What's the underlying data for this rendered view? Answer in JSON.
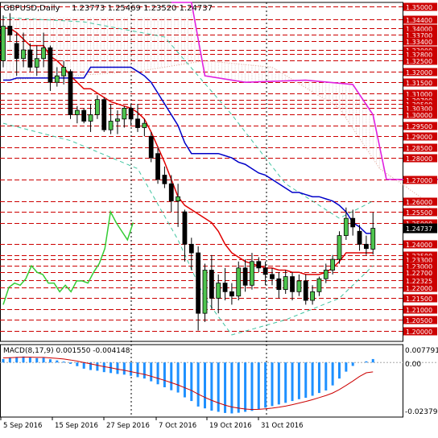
{
  "header": {
    "symbol": "GBPUSD,Daily",
    "ohlc": "1.23773 1.25469 1.23520 1.24737"
  },
  "macd": {
    "label": "MACD(8,17,9) 0.001550 -0.004148",
    "scale_top": "0.007791",
    "scale_zero": "0.00",
    "scale_bottom": "-0.02379"
  },
  "colors": {
    "background": "#ffffff",
    "level_line": "#cc0000",
    "current_price_bg": "#000000",
    "candle_bull": "#4ec44e",
    "candle_bear": "#000000",
    "tenkan": "#e00000",
    "kijun": "#0000c8",
    "senkou_b": "#e020e0",
    "chikou": "#33cc33",
    "bollinger": "#40c4a0",
    "macd_hist": "#1e90ff",
    "macd_signal": "#cc0000"
  },
  "chart_data": {
    "type": "candlestick",
    "symbol": "GBPUSD",
    "timeframe": "Daily",
    "ylim": [
      1.195,
      1.352
    ],
    "current_price": 1.24737,
    "levels": [
      1.35,
      1.344,
      1.34,
      1.337,
      1.334,
      1.33,
      1.328,
      1.325,
      1.32,
      1.315,
      1.31,
      1.307,
      1.305,
      1.303,
      1.3,
      1.295,
      1.29,
      1.285,
      1.28,
      1.27,
      1.26,
      1.255,
      1.25,
      1.24,
      1.235,
      1.233,
      1.23,
      1.227,
      1.2232,
      1.22,
      1.215,
      1.21,
      1.205,
      1.2
    ],
    "level_labels": [
      "1.35000",
      "1.34400",
      "1.34000",
      "1.33700",
      "1.33400",
      "1.33000",
      "1.32800",
      "1.32500",
      "1.32000",
      "1.31500",
      "1.31000",
      "1.30700",
      "1.30500",
      "1.30300",
      "1.30000",
      "1.29500",
      "1.29000",
      "1.28500",
      "1.28000",
      "1.27000",
      "1.26000",
      "1.25500",
      "1.25000",
      "1.24000",
      "1.23500",
      "1.23300",
      "1.23000",
      "1.22700",
      "1.22325",
      "1.22000",
      "1.21500",
      "1.21000",
      "1.20500",
      "1.20000"
    ],
    "x_labels": [
      "5 Sep 2016",
      "15 Sep 2016",
      "27 Sep 2016",
      "7 Oct 2016",
      "19 Oct 2016",
      "31 Oct 2016"
    ],
    "candles": [
      {
        "o": 1.325,
        "h": 1.346,
        "l": 1.322,
        "c": 1.341
      },
      {
        "o": 1.341,
        "h": 1.347,
        "l": 1.334,
        "c": 1.337
      },
      {
        "o": 1.333,
        "h": 1.338,
        "l": 1.318,
        "c": 1.326
      },
      {
        "o": 1.326,
        "h": 1.338,
        "l": 1.322,
        "c": 1.33
      },
      {
        "o": 1.33,
        "h": 1.333,
        "l": 1.32,
        "c": 1.322
      },
      {
        "o": 1.322,
        "h": 1.332,
        "l": 1.318,
        "c": 1.326
      },
      {
        "o": 1.326,
        "h": 1.338,
        "l": 1.322,
        "c": 1.331
      },
      {
        "o": 1.331,
        "h": 1.332,
        "l": 1.311,
        "c": 1.315
      },
      {
        "o": 1.315,
        "h": 1.322,
        "l": 1.313,
        "c": 1.318
      },
      {
        "o": 1.318,
        "h": 1.325,
        "l": 1.314,
        "c": 1.322
      },
      {
        "o": 1.32,
        "h": 1.321,
        "l": 1.298,
        "c": 1.3
      },
      {
        "o": 1.3,
        "h": 1.304,
        "l": 1.296,
        "c": 1.302
      },
      {
        "o": 1.302,
        "h": 1.303,
        "l": 1.296,
        "c": 1.297
      },
      {
        "o": 1.297,
        "h": 1.305,
        "l": 1.292,
        "c": 1.3
      },
      {
        "o": 1.3,
        "h": 1.309,
        "l": 1.298,
        "c": 1.307
      },
      {
        "o": 1.307,
        "h": 1.308,
        "l": 1.292,
        "c": 1.293
      },
      {
        "o": 1.293,
        "h": 1.305,
        "l": 1.291,
        "c": 1.297
      },
      {
        "o": 1.297,
        "h": 1.302,
        "l": 1.291,
        "c": 1.298
      },
      {
        "o": 1.298,
        "h": 1.304,
        "l": 1.294,
        "c": 1.303
      },
      {
        "o": 1.303,
        "h": 1.305,
        "l": 1.295,
        "c": 1.298
      },
      {
        "o": 1.298,
        "h": 1.305,
        "l": 1.292,
        "c": 1.294
      },
      {
        "o": 1.294,
        "h": 1.298,
        "l": 1.29,
        "c": 1.296
      },
      {
        "o": 1.29,
        "h": 1.292,
        "l": 1.278,
        "c": 1.28
      },
      {
        "o": 1.282,
        "h": 1.285,
        "l": 1.268,
        "c": 1.27
      },
      {
        "o": 1.272,
        "h": 1.276,
        "l": 1.266,
        "c": 1.268
      },
      {
        "o": 1.268,
        "h": 1.272,
        "l": 1.255,
        "c": 1.26
      },
      {
        "o": 1.26,
        "h": 1.268,
        "l": 1.248,
        "c": 1.262
      },
      {
        "o": 1.255,
        "h": 1.256,
        "l": 1.232,
        "c": 1.24
      },
      {
        "o": 1.24,
        "h": 1.243,
        "l": 1.228,
        "c": 1.236
      },
      {
        "o": 1.236,
        "h": 1.239,
        "l": 1.2,
        "c": 1.208
      },
      {
        "o": 1.208,
        "h": 1.231,
        "l": 1.204,
        "c": 1.228
      },
      {
        "o": 1.228,
        "h": 1.235,
        "l": 1.21,
        "c": 1.215
      },
      {
        "o": 1.215,
        "h": 1.226,
        "l": 1.208,
        "c": 1.222
      },
      {
        "o": 1.222,
        "h": 1.229,
        "l": 1.214,
        "c": 1.218
      },
      {
        "o": 1.218,
        "h": 1.222,
        "l": 1.212,
        "c": 1.216
      },
      {
        "o": 1.216,
        "h": 1.232,
        "l": 1.214,
        "c": 1.229
      },
      {
        "o": 1.229,
        "h": 1.233,
        "l": 1.218,
        "c": 1.221
      },
      {
        "o": 1.221,
        "h": 1.236,
        "l": 1.219,
        "c": 1.232
      },
      {
        "o": 1.232,
        "h": 1.234,
        "l": 1.227,
        "c": 1.229
      },
      {
        "o": 1.229,
        "h": 1.232,
        "l": 1.221,
        "c": 1.226
      },
      {
        "o": 1.226,
        "h": 1.229,
        "l": 1.221,
        "c": 1.224
      },
      {
        "o": 1.224,
        "h": 1.227,
        "l": 1.215,
        "c": 1.219
      },
      {
        "o": 1.219,
        "h": 1.228,
        "l": 1.217,
        "c": 1.225
      },
      {
        "o": 1.225,
        "h": 1.227,
        "l": 1.214,
        "c": 1.218
      },
      {
        "o": 1.218,
        "h": 1.226,
        "l": 1.216,
        "c": 1.223
      },
      {
        "o": 1.223,
        "h": 1.226,
        "l": 1.212,
        "c": 1.214
      },
      {
        "o": 1.214,
        "h": 1.221,
        "l": 1.212,
        "c": 1.218
      },
      {
        "o": 1.218,
        "h": 1.225,
        "l": 1.216,
        "c": 1.224
      },
      {
        "o": 1.224,
        "h": 1.231,
        "l": 1.222,
        "c": 1.228
      },
      {
        "o": 1.228,
        "h": 1.235,
        "l": 1.226,
        "c": 1.233
      },
      {
        "o": 1.233,
        "h": 1.246,
        "l": 1.231,
        "c": 1.244
      },
      {
        "o": 1.244,
        "h": 1.257,
        "l": 1.242,
        "c": 1.252
      },
      {
        "o": 1.252,
        "h": 1.256,
        "l": 1.244,
        "c": 1.248
      },
      {
        "o": 1.246,
        "h": 1.249,
        "l": 1.237,
        "c": 1.24
      },
      {
        "o": 1.24,
        "h": 1.244,
        "l": 1.235,
        "c": 1.238
      },
      {
        "o": 1.23773,
        "h": 1.25469,
        "l": 1.2352,
        "c": 1.24737
      }
    ],
    "tenkan": [
      1.34,
      1.34,
      1.338,
      1.335,
      1.332,
      1.332,
      1.332,
      1.327,
      1.325,
      1.322,
      1.318,
      1.315,
      1.312,
      1.312,
      1.31,
      1.308,
      1.306,
      1.305,
      1.304,
      1.303,
      1.301,
      1.298,
      1.292,
      1.285,
      1.278,
      1.27,
      1.262,
      1.258,
      1.256,
      1.254,
      1.252,
      1.25,
      1.246,
      1.24,
      1.236,
      1.234,
      1.232,
      1.231,
      1.23,
      1.229,
      1.229,
      1.228,
      1.228,
      1.227,
      1.227,
      1.226,
      1.226,
      1.226,
      1.227,
      1.229,
      1.232,
      1.236,
      1.236,
      1.236,
      1.236,
      1.236
    ],
    "kijun": [
      1.316,
      1.316,
      1.317,
      1.317,
      1.317,
      1.317,
      1.317,
      1.317,
      1.317,
      1.317,
      1.317,
      1.317,
      1.317,
      1.322,
      1.322,
      1.322,
      1.322,
      1.322,
      1.322,
      1.322,
      1.32,
      1.318,
      1.315,
      1.31,
      1.305,
      1.3,
      1.295,
      1.287,
      1.282,
      1.282,
      1.282,
      1.282,
      1.282,
      1.281,
      1.28,
      1.278,
      1.277,
      1.275,
      1.273,
      1.272,
      1.27,
      1.268,
      1.266,
      1.264,
      1.264,
      1.263,
      1.262,
      1.262,
      1.261,
      1.26,
      1.258,
      1.255,
      1.25,
      1.248,
      1.245,
      1.245
    ],
    "senkou_b": [
      {
        "i": 28,
        "v": 1.352
      },
      {
        "i": 30,
        "v": 1.318
      },
      {
        "i": 36,
        "v": 1.315
      },
      {
        "i": 45,
        "v": 1.316
      },
      {
        "i": 52,
        "v": 1.314
      },
      {
        "i": 55,
        "v": 1.3
      },
      {
        "i": 57,
        "v": 1.27
      },
      {
        "i": 68,
        "v": 1.27
      }
    ],
    "chikou": [
      1.212,
      1.22,
      1.222,
      1.221,
      1.224,
      1.23,
      1.227,
      1.226,
      1.222,
      1.222,
      1.218,
      1.221,
      1.218,
      1.223,
      1.223,
      1.222,
      1.227,
      1.231,
      1.238,
      1.255,
      1.25,
      1.246,
      1.242,
      1.25
    ],
    "macd_hist": [
      0.0015,
      0.0022,
      0.0024,
      0.0026,
      0.0022,
      0.0019,
      0.0021,
      0.0014,
      0.0009,
      0.0004,
      -0.0006,
      -0.0016,
      -0.0027,
      -0.0033,
      -0.0036,
      -0.0042,
      -0.0046,
      -0.005,
      -0.0053,
      -0.0058,
      -0.0064,
      -0.007,
      -0.0082,
      -0.0095,
      -0.0108,
      -0.0121,
      -0.0131,
      -0.0152,
      -0.0168,
      -0.0192,
      -0.02,
      -0.021,
      -0.0215,
      -0.022,
      -0.0222,
      -0.0219,
      -0.0215,
      -0.0211,
      -0.0204,
      -0.0197,
      -0.019,
      -0.0183,
      -0.0176,
      -0.0168,
      -0.016,
      -0.0154,
      -0.0145,
      -0.0133,
      -0.0122,
      -0.01,
      -0.007,
      -0.004,
      -0.0015,
      0.0,
      0.0005,
      0.0015
    ],
    "macd_signal": [
      0.002,
      0.0021,
      0.0022,
      0.0023,
      0.0023,
      0.0022,
      0.0022,
      0.002,
      0.0018,
      0.0015,
      0.0011,
      0.0006,
      0.0,
      -0.0006,
      -0.0012,
      -0.0018,
      -0.0023,
      -0.0029,
      -0.0034,
      -0.004,
      -0.0046,
      -0.0052,
      -0.006,
      -0.0069,
      -0.0078,
      -0.0088,
      -0.0098,
      -0.011,
      -0.0122,
      -0.0138,
      -0.0152,
      -0.0165,
      -0.0176,
      -0.0186,
      -0.0194,
      -0.0199,
      -0.0203,
      -0.0205,
      -0.0204,
      -0.0202,
      -0.0199,
      -0.0195,
      -0.019,
      -0.0184,
      -0.0177,
      -0.017,
      -0.0162,
      -0.0153,
      -0.0144,
      -0.0133,
      -0.0118,
      -0.01,
      -0.0081,
      -0.0061,
      -0.0045,
      -0.0041
    ]
  }
}
